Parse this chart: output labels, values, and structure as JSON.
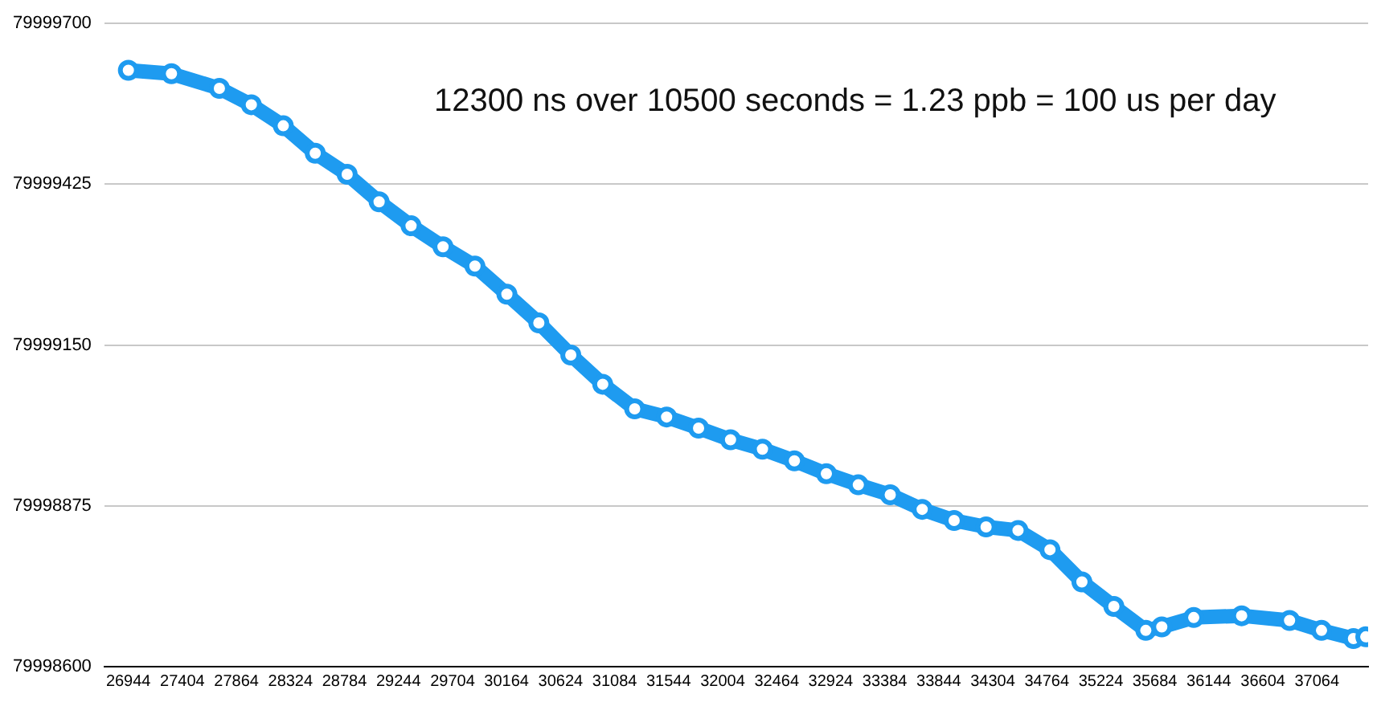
{
  "chart_data": {
    "type": "line",
    "x": [
      26944,
      27311,
      27719,
      27991,
      28263,
      28535,
      28807,
      29079,
      29351,
      29623,
      29895,
      30167,
      30439,
      30711,
      30983,
      31255,
      31527,
      31799,
      32071,
      32343,
      32615,
      32887,
      33159,
      33431,
      33703,
      33975,
      34247,
      34519,
      34791,
      35063,
      35335,
      35607,
      35743,
      36015,
      36423,
      36831,
      37103,
      37375,
      37480
    ],
    "series": [
      {
        "color": "#1e9bf0",
        "values": [
          79999620,
          79999614,
          79999589,
          79999561,
          79999525,
          79999478,
          79999442,
          79999395,
          79999354,
          79999318,
          79999285,
          79999237,
          79999188,
          79999133,
          79999083,
          79999041,
          79999027,
          79999008,
          79998988,
          79998972,
          79998952,
          79998930,
          79998911,
          79998894,
          79998869,
          79998850,
          79998839,
          79998833,
          79998800,
          79998745,
          79998703,
          79998662,
          79998668,
          79998684,
          79998687,
          79998679,
          79998662,
          79998648,
          79998651
        ]
      }
    ],
    "xlim": [
      26740,
      37500
    ],
    "xticks": [
      26944,
      27404,
      27864,
      28324,
      28784,
      29244,
      29704,
      30164,
      30624,
      31084,
      31544,
      32004,
      32464,
      32924,
      33384,
      33844,
      34304,
      34764,
      35224,
      35684,
      36144,
      36604,
      37064
    ],
    "ylim": [
      79998600,
      79999700
    ],
    "yticks": [
      79998600,
      79998875,
      79999150,
      79999425,
      79999700
    ],
    "grid": "y",
    "marker": "circle",
    "line_style": "solid",
    "legend": false,
    "annotations": [
      "12300 ns over 10500 seconds = 1.23 ppb = 100 us per day"
    ]
  }
}
